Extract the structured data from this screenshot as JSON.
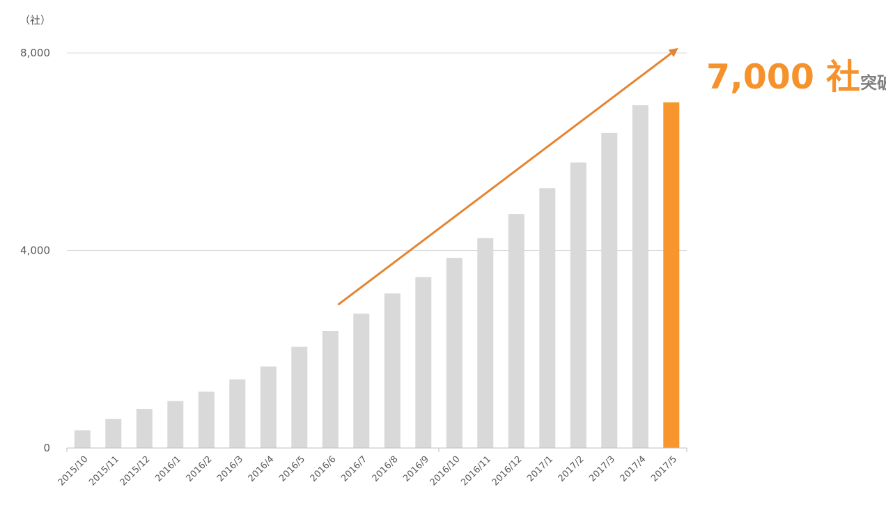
{
  "chart_data": {
    "type": "bar",
    "unit_label": "（社）",
    "categories": [
      "2015/10",
      "2015/11",
      "2015/12",
      "2016/1",
      "2016/2",
      "2016/3",
      "2016/4",
      "2016/5",
      "2016/6",
      "2016/7",
      "2016/8",
      "2016/9",
      "2016/10",
      "2016/11",
      "2016/12",
      "2017/1",
      "2017/2",
      "2017/3",
      "2017/4",
      "2017/5"
    ],
    "values": [
      360,
      590,
      790,
      950,
      1140,
      1390,
      1650,
      2050,
      2370,
      2720,
      3130,
      3460,
      3850,
      4250,
      4740,
      5260,
      5780,
      6380,
      6940,
      7000
    ],
    "highlight_index": 19,
    "ylim": [
      0,
      8000
    ],
    "yticks": [
      0,
      4000,
      8000
    ],
    "ytick_labels": [
      "0",
      "4,000",
      "8,000"
    ],
    "grid": true,
    "colors": {
      "bar": "#d9d9d9",
      "highlight": "#f8952c",
      "arrow": "#e58432",
      "gridline": "#d9d9d9",
      "axis": "#bfbfbf"
    },
    "annotation": {
      "number_text": "7,000 社",
      "suffix_text": "突破",
      "arrow_from": {
        "category": "2016/6",
        "value": 2900
      },
      "arrow_to": {
        "category": "2017/5",
        "value": 8100
      }
    }
  }
}
